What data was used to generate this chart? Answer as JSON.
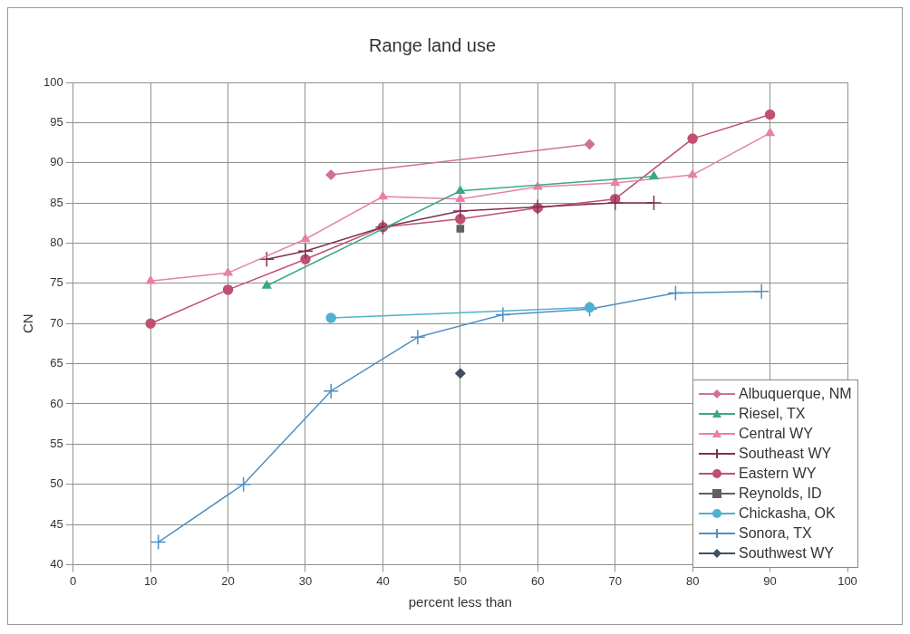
{
  "chart_data": {
    "type": "line",
    "title": "Range land use",
    "xlabel": "percent less than",
    "ylabel": "CN",
    "xlim": [
      0,
      100
    ],
    "xticks": [
      0,
      10,
      20,
      30,
      40,
      50,
      60,
      70,
      80,
      90,
      100
    ],
    "ylim": [
      40,
      100
    ],
    "yticks": [
      40,
      45,
      50,
      55,
      60,
      65,
      70,
      75,
      80,
      85,
      90,
      95,
      100
    ],
    "grid": true,
    "legend": "bottom right",
    "series": [
      {
        "name": "Albuquerque, NM",
        "color": "#d0709a",
        "marker": "diamond",
        "x": [
          33.3,
          66.7
        ],
        "values": [
          88.5,
          92.3
        ]
      },
      {
        "name": "Riesel, TX",
        "color": "#3aa88a",
        "marker": "triangle",
        "x": [
          25,
          50,
          75
        ],
        "values": [
          74.7,
          86.5,
          88.3
        ]
      },
      {
        "name": "Central WY",
        "color": "#e880a8",
        "marker": "triangle",
        "x": [
          10,
          20,
          30,
          40,
          50,
          60,
          70,
          80,
          90
        ],
        "values": [
          75.3,
          76.3,
          80.5,
          85.8,
          85.5,
          87,
          87.5,
          88.5,
          93.7
        ]
      },
      {
        "name": "Southeast WY",
        "color": "#803050",
        "marker": "cross",
        "x": [
          25,
          30,
          40,
          50,
          60,
          70,
          75
        ],
        "values": [
          78,
          79,
          82,
          84,
          84.5,
          85,
          85
        ]
      },
      {
        "name": "Eastern WY",
        "color": "#c05070",
        "marker": "circle",
        "x": [
          10,
          20,
          30,
          40,
          50,
          60,
          70,
          80,
          90
        ],
        "values": [
          70,
          74.2,
          78,
          82,
          83,
          84.4,
          85.5,
          93,
          96
        ]
      },
      {
        "name": "Reynolds, ID",
        "color": "#606060",
        "marker": "square",
        "x": [
          50
        ],
        "values": [
          81.8
        ]
      },
      {
        "name": "Chickasha, OK",
        "color": "#50b0d0",
        "marker": "circle",
        "x": [
          33.3,
          66.7
        ],
        "values": [
          70.7,
          72
        ]
      },
      {
        "name": "Sonora, TX",
        "color": "#5090c0",
        "marker": "cross",
        "x": [
          11,
          22,
          33.3,
          44.5,
          55.5,
          66.7,
          77.8,
          88.9
        ],
        "values": [
          42.8,
          50,
          61.6,
          68.3,
          71.1,
          71.8,
          73.8,
          74
        ]
      },
      {
        "name": "Southwest WY",
        "color": "#405060",
        "marker": "diamond",
        "x": [
          50
        ],
        "values": [
          63.8
        ]
      }
    ]
  }
}
